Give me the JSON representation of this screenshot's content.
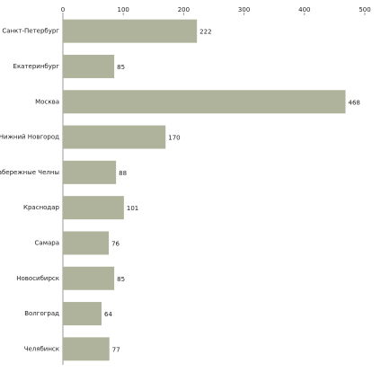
{
  "chart_data": {
    "type": "bar",
    "categories": [
      "Санкт-Петербург",
      "Екатеринбург",
      "Москва",
      "Нижний Новгород",
      "Набережные Челны",
      "Краснодар",
      "Самара",
      "Новосибирск",
      "Волгоград",
      "Челябинск"
    ],
    "values": [
      222,
      85,
      468,
      170,
      88,
      101,
      76,
      85,
      64,
      77
    ],
    "color": "#b0b39b",
    "xlim": [
      0,
      500
    ],
    "xticks": [
      0,
      100,
      200,
      300,
      400,
      500
    ]
  }
}
